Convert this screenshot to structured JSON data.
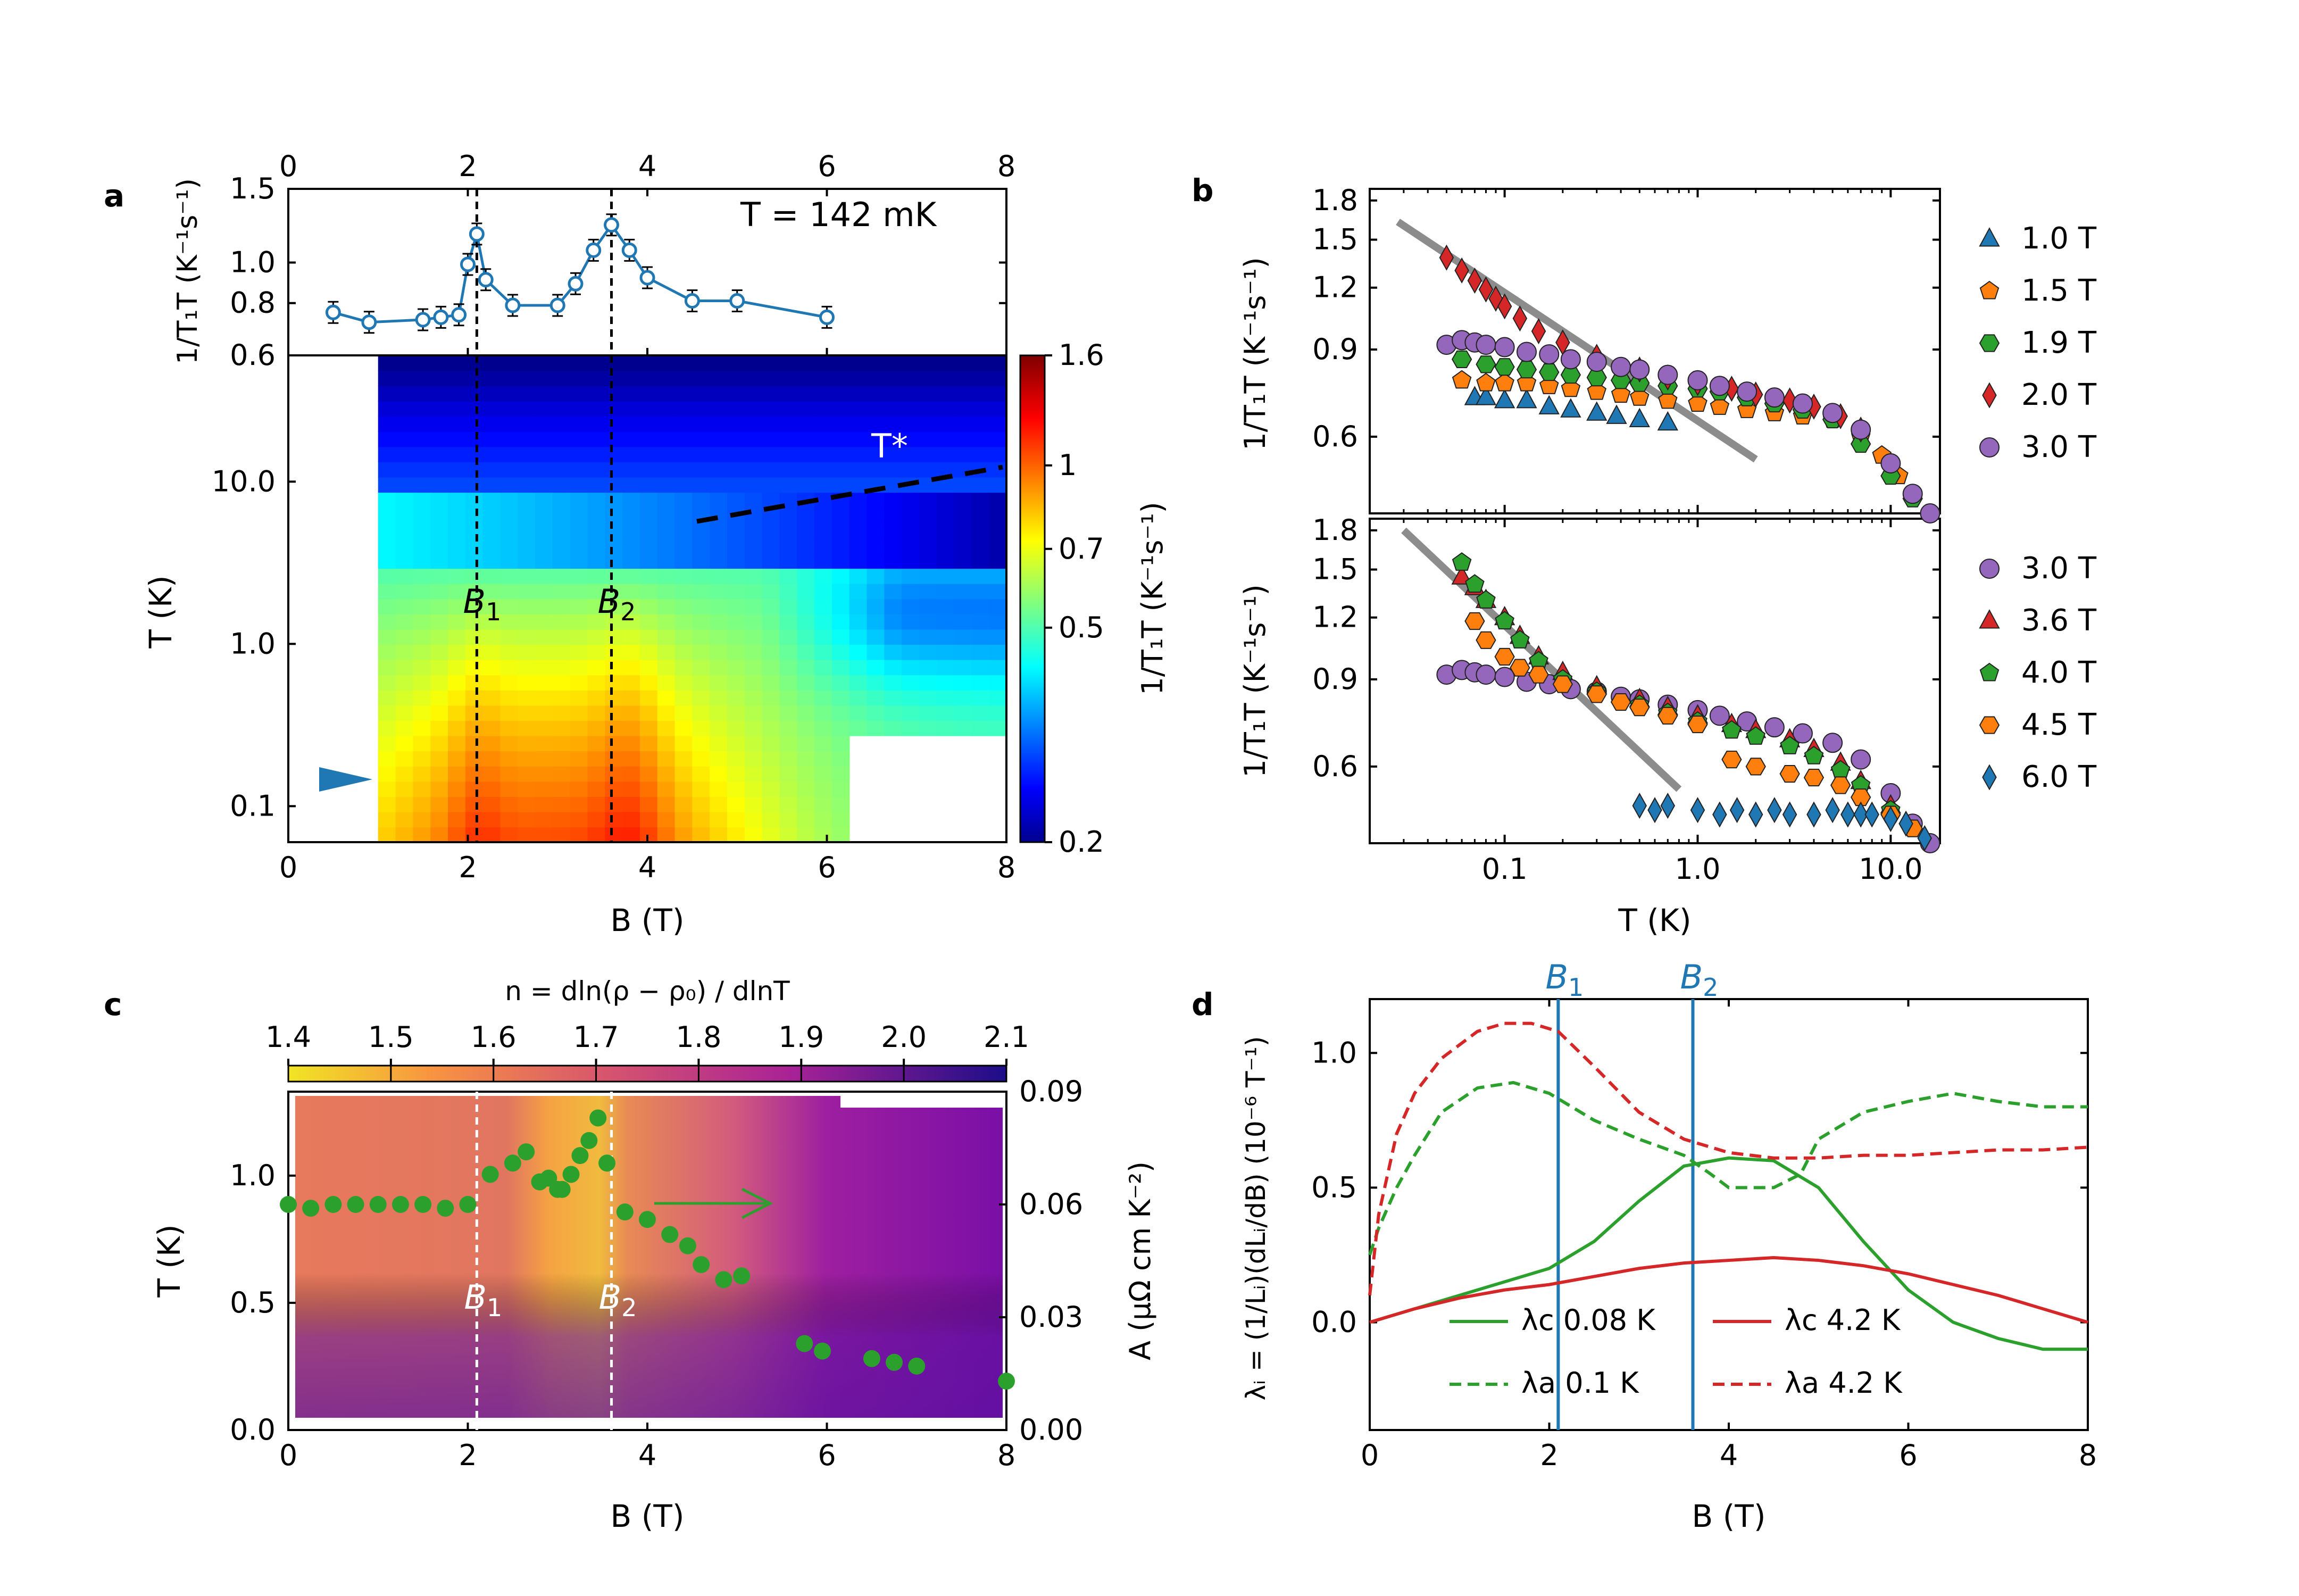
{
  "colors": {
    "blue": "#1f77b4",
    "orange": "#ff7f0e",
    "green": "#2ca02c",
    "red": "#d62728",
    "purple": "#9467bd",
    "panel_d_blue": "#1f77b4",
    "ref_line": "#808080"
  },
  "panel_labels": {
    "a": "a",
    "b": "b",
    "c": "c",
    "d": "d"
  },
  "chart_data": [
    {
      "id": "a-top",
      "type": "line",
      "ylabel": "1/T₁T (K⁻¹s⁻¹)",
      "annotation": "T = 142 mK",
      "xlim": [
        0,
        8
      ],
      "ylim_log": [
        0.6,
        1.5
      ],
      "x_ticks": [
        "0",
        "2",
        "4",
        "6",
        "8"
      ],
      "y_ticks": [
        "0.6",
        "0.8",
        "1.0",
        "1.5"
      ],
      "y_tick_values": [
        0.6,
        0.8,
        1.0,
        1.5
      ],
      "vlines": [
        2.1,
        3.6
      ],
      "series": [
        {
          "x": [
            0.5,
            0.9,
            1.5,
            1.7,
            1.9,
            2.0,
            2.1,
            2.2,
            2.5,
            3.0,
            3.2,
            3.4,
            3.6,
            3.8,
            4.0,
            4.5,
            5.0,
            6.0
          ],
          "y": [
            0.76,
            0.72,
            0.73,
            0.74,
            0.75,
            0.99,
            1.17,
            0.91,
            0.79,
            0.79,
            0.89,
            1.07,
            1.23,
            1.07,
            0.92,
            0.81,
            0.81,
            0.74
          ]
        }
      ]
    },
    {
      "id": "a-map",
      "type": "heatmap",
      "xlabel": "B (T)",
      "ylabel": "T (K)",
      "xlim": [
        0,
        8
      ],
      "ylim_log": [
        0.06,
        60
      ],
      "x_ticks": [
        "0",
        "2",
        "4",
        "6",
        "8"
      ],
      "y_ticks": [
        "0.1",
        "1.0",
        "10.0"
      ],
      "y_tick_values": [
        0.1,
        1.0,
        10.0
      ],
      "vlines": [
        2.1,
        3.6
      ],
      "vline_labels": [
        "B₁",
        "B₂"
      ],
      "annotation": "T*",
      "colorbar": {
        "label": "1/T₁T (K⁻¹s⁻¹)",
        "ticks": [
          "0.2",
          "0.5",
          "0.7",
          "1",
          "1.6"
        ],
        "tick_values": [
          0.2,
          0.5,
          0.7,
          1.0,
          1.6
        ],
        "range": [
          0.2,
          1.6
        ]
      }
    },
    {
      "id": "b-top",
      "type": "scatter",
      "ylabel": "1/T₁T (K⁻¹s⁻¹)",
      "xlim_log": [
        0.02,
        18
      ],
      "ylim_log": [
        0.42,
        1.9
      ],
      "y_ticks": [
        "0.6",
        "0.9",
        "1.2",
        "1.5",
        "1.8"
      ],
      "y_tick_values": [
        0.6,
        0.9,
        1.2,
        1.5,
        1.8
      ],
      "series": [
        {
          "name": "1.0 T",
          "marker": "triangle",
          "x": [
            0.07,
            0.08,
            0.1,
            0.13,
            0.17,
            0.22,
            0.3,
            0.38,
            0.5,
            0.7
          ],
          "y": [
            0.72,
            0.72,
            0.71,
            0.71,
            0.69,
            0.68,
            0.67,
            0.66,
            0.65,
            0.64
          ]
        },
        {
          "name": "1.5 T",
          "marker": "pentagon",
          "x": [
            0.06,
            0.08,
            0.1,
            0.13,
            0.17,
            0.22,
            0.3,
            0.4,
            0.5,
            0.7,
            1.0,
            1.3,
            1.8,
            2.5,
            3.5,
            5.0,
            7.0,
            9.0,
            11.0
          ],
          "y": [
            0.78,
            0.77,
            0.77,
            0.77,
            0.76,
            0.75,
            0.74,
            0.73,
            0.72,
            0.71,
            0.7,
            0.69,
            0.68,
            0.67,
            0.66,
            0.65,
            0.6,
            0.55,
            0.5
          ]
        },
        {
          "name": "1.9 T",
          "marker": "hexagon",
          "x": [
            0.06,
            0.08,
            0.1,
            0.13,
            0.17,
            0.22,
            0.3,
            0.4,
            0.5,
            0.7,
            1.0,
            1.3,
            1.8,
            2.5,
            3.5,
            5.0,
            7.0,
            10.0,
            13.0
          ],
          "y": [
            0.86,
            0.84,
            0.83,
            0.82,
            0.81,
            0.8,
            0.79,
            0.78,
            0.77,
            0.76,
            0.75,
            0.74,
            0.72,
            0.7,
            0.68,
            0.65,
            0.58,
            0.5,
            0.45
          ]
        },
        {
          "name": "2.0 T",
          "marker": "diamond",
          "x": [
            0.05,
            0.06,
            0.07,
            0.08,
            0.09,
            0.1,
            0.12,
            0.15,
            0.2,
            0.3,
            0.5,
            0.7,
            1.0,
            1.5,
            2.0,
            3.0,
            4.0,
            5.5,
            7.0
          ],
          "y": [
            1.38,
            1.3,
            1.24,
            1.19,
            1.14,
            1.1,
            1.04,
            0.98,
            0.93,
            0.87,
            0.82,
            0.79,
            0.77,
            0.75,
            0.73,
            0.71,
            0.69,
            0.66,
            0.62
          ]
        },
        {
          "name": "3.0 T",
          "marker": "circle",
          "x": [
            0.05,
            0.06,
            0.07,
            0.08,
            0.1,
            0.13,
            0.17,
            0.22,
            0.3,
            0.4,
            0.5,
            0.7,
            1.0,
            1.3,
            1.8,
            2.5,
            3.5,
            5.0,
            7.0,
            10.0,
            13.0,
            16.0
          ],
          "y": [
            0.92,
            0.94,
            0.93,
            0.92,
            0.91,
            0.89,
            0.88,
            0.86,
            0.85,
            0.83,
            0.82,
            0.8,
            0.78,
            0.76,
            0.74,
            0.72,
            0.7,
            0.67,
            0.62,
            0.53,
            0.46,
            0.42
          ]
        }
      ],
      "ref_line": {
        "x": [
          0.028,
          2.0
        ],
        "y": [
          1.63,
          0.54
        ]
      }
    },
    {
      "id": "b-bottom",
      "type": "scatter",
      "xlabel": "T (K)",
      "ylabel": "1/T₁T (K⁻¹s⁻¹)",
      "xlim_log": [
        0.02,
        18
      ],
      "ylim_log": [
        0.42,
        1.9
      ],
      "x_ticks": [
        "0.1",
        "1.0",
        "10.0"
      ],
      "x_tick_values": [
        0.1,
        1.0,
        10.0
      ],
      "y_ticks": [
        "0.6",
        "0.9",
        "1.2",
        "1.5",
        "1.8"
      ],
      "y_tick_values": [
        0.6,
        0.9,
        1.2,
        1.5,
        1.8
      ],
      "series": [
        {
          "name": "3.0 T",
          "marker": "circle",
          "x": [
            0.05,
            0.06,
            0.07,
            0.08,
            0.1,
            0.13,
            0.17,
            0.22,
            0.3,
            0.4,
            0.5,
            0.7,
            1.0,
            1.3,
            1.8,
            2.5,
            3.5,
            5.0,
            7.0,
            10.0,
            13.0,
            16.0
          ],
          "y": [
            0.92,
            0.94,
            0.93,
            0.92,
            0.91,
            0.89,
            0.88,
            0.86,
            0.85,
            0.83,
            0.82,
            0.8,
            0.78,
            0.76,
            0.74,
            0.72,
            0.7,
            0.67,
            0.62,
            0.53,
            0.46,
            0.42
          ]
        },
        {
          "name": "3.6 T",
          "marker": "triangle",
          "x": [
            0.06,
            0.07,
            0.08,
            0.1,
            0.12,
            0.15,
            0.2,
            0.3,
            0.5,
            0.7,
            1.0,
            1.5,
            2.0,
            3.0,
            4.0,
            5.5,
            7.0,
            10.0
          ],
          "y": [
            1.45,
            1.38,
            1.3,
            1.2,
            1.1,
            1.0,
            0.93,
            0.87,
            0.82,
            0.79,
            0.76,
            0.73,
            0.71,
            0.68,
            0.65,
            0.61,
            0.56,
            0.5
          ]
        },
        {
          "name": "4.0 T",
          "marker": "pentagon",
          "x": [
            0.06,
            0.07,
            0.08,
            0.1,
            0.12,
            0.15,
            0.2,
            0.3,
            0.5,
            0.7,
            1.0,
            1.5,
            2.0,
            3.0,
            4.0,
            5.5,
            7.0,
            10.0
          ],
          "y": [
            1.55,
            1.4,
            1.3,
            1.18,
            1.08,
            0.98,
            0.9,
            0.85,
            0.8,
            0.77,
            0.74,
            0.71,
            0.69,
            0.66,
            0.63,
            0.59,
            0.55,
            0.49
          ]
        },
        {
          "name": "4.5 T",
          "marker": "hexagon",
          "x": [
            0.07,
            0.08,
            0.1,
            0.12,
            0.15,
            0.2,
            0.3,
            0.4,
            0.5,
            0.7,
            1.0,
            1.5,
            2.0,
            3.0,
            4.0,
            5.5,
            7.0,
            10.0,
            13.0
          ],
          "y": [
            1.18,
            1.08,
            1.0,
            0.95,
            0.92,
            0.88,
            0.84,
            0.81,
            0.79,
            0.76,
            0.73,
            0.62,
            0.6,
            0.58,
            0.57,
            0.55,
            0.52,
            0.48,
            0.45
          ]
        },
        {
          "name": "6.0 T",
          "marker": "diamond",
          "x": [
            0.5,
            0.6,
            0.7,
            1.0,
            1.3,
            1.6,
            2.0,
            2.5,
            3.0,
            4.0,
            5.0,
            6.0,
            7.0,
            8.0,
            10.0,
            12.0,
            15.0
          ],
          "y": [
            0.5,
            0.49,
            0.5,
            0.49,
            0.48,
            0.49,
            0.48,
            0.49,
            0.48,
            0.48,
            0.49,
            0.48,
            0.48,
            0.48,
            0.47,
            0.46,
            0.43
          ]
        }
      ],
      "ref_line": {
        "x": [
          0.03,
          0.8
        ],
        "y": [
          1.8,
          0.54
        ]
      }
    },
    {
      "id": "c",
      "type": "heatmap",
      "xlabel": "B (T)",
      "ylabel": "T (K)",
      "y2label": "A (μΩ cm K⁻²)",
      "xlim": [
        0,
        8
      ],
      "ylim": [
        0,
        1.33
      ],
      "y2lim": [
        0,
        0.09
      ],
      "x_ticks": [
        "0",
        "2",
        "4",
        "6",
        "8"
      ],
      "y_ticks": [
        "0.0",
        "0.5",
        "1.0"
      ],
      "y_tick_values": [
        0.0,
        0.5,
        1.0
      ],
      "y2_ticks": [
        "0.00",
        "0.03",
        "0.06",
        "0.09"
      ],
      "y2_tick_values": [
        0.0,
        0.03,
        0.06,
        0.09
      ],
      "vlines": [
        2.1,
        3.6
      ],
      "vline_labels": [
        "B₁",
        "B₂"
      ],
      "colorbar": {
        "label": "n = dln(ρ − ρ₀) / dlnT",
        "ticks": [
          "1.4",
          "1.5",
          "1.6",
          "1.7",
          "1.8",
          "1.9",
          "2.0",
          "2.1"
        ],
        "tick_values": [
          1.4,
          1.5,
          1.6,
          1.7,
          1.8,
          1.9,
          2.0,
          2.1
        ]
      },
      "series": [
        {
          "name": "A",
          "x": [
            0.0,
            0.25,
            0.5,
            0.75,
            1.0,
            1.25,
            1.5,
            1.75,
            2.0,
            2.25,
            2.5,
            2.65,
            2.8,
            2.9,
            3.0,
            3.05,
            3.15,
            3.25,
            3.35,
            3.45,
            3.55,
            3.75,
            4.0,
            4.25,
            4.45,
            4.6,
            4.85,
            5.05,
            5.75,
            5.95,
            6.5,
            6.75,
            7.0,
            8.0
          ],
          "y": [
            0.06,
            0.059,
            0.06,
            0.06,
            0.06,
            0.06,
            0.06,
            0.059,
            0.06,
            0.068,
            0.071,
            0.074,
            0.066,
            0.067,
            0.064,
            0.064,
            0.068,
            0.073,
            0.077,
            0.083,
            0.071,
            0.058,
            0.056,
            0.052,
            0.049,
            0.044,
            0.04,
            0.041,
            0.023,
            0.021,
            0.019,
            0.018,
            0.017,
            0.013
          ]
        }
      ]
    },
    {
      "id": "d",
      "type": "line",
      "xlabel": "B (T)",
      "ylabel": "λᵢ = (1/Lᵢ)(dLᵢ/dB) (10⁻⁶ T⁻¹)",
      "xlim": [
        0,
        8
      ],
      "ylim": [
        -0.4,
        1.2
      ],
      "x_ticks": [
        "0",
        "2",
        "4",
        "6",
        "8"
      ],
      "y_ticks": [
        "0.0",
        "0.5",
        "1.0"
      ],
      "y_tick_values": [
        0.0,
        0.5,
        1.0
      ],
      "vlines": [
        2.1,
        3.6
      ],
      "vline_labels": [
        "B₁",
        "B₂"
      ],
      "series": [
        {
          "name": "λc 0.08 K",
          "style": "solid-green",
          "x": [
            0.0,
            0.5,
            1.0,
            1.5,
            2.0,
            2.5,
            3.0,
            3.5,
            4.0,
            4.5,
            5.0,
            5.5,
            6.0,
            6.5,
            7.0,
            7.5,
            8.0
          ],
          "y": [
            0.0,
            0.05,
            0.1,
            0.15,
            0.2,
            0.3,
            0.45,
            0.58,
            0.61,
            0.6,
            0.5,
            0.3,
            0.12,
            0.0,
            -0.06,
            -0.1,
            -0.1
          ]
        },
        {
          "name": "λa 0.1 K",
          "style": "dashed-green",
          "x": [
            0.0,
            0.1,
            0.3,
            0.5,
            0.8,
            1.2,
            1.6,
            2.0,
            2.5,
            3.0,
            3.5,
            3.8,
            4.0,
            4.5,
            4.8,
            5.0,
            5.5,
            6.0,
            6.5,
            7.0,
            7.5,
            8.0
          ],
          "y": [
            0.25,
            0.35,
            0.5,
            0.62,
            0.78,
            0.87,
            0.89,
            0.85,
            0.75,
            0.68,
            0.62,
            0.55,
            0.5,
            0.5,
            0.55,
            0.68,
            0.78,
            0.82,
            0.85,
            0.82,
            0.8,
            0.8
          ]
        },
        {
          "name": "λc 4.2 K",
          "style": "solid-red",
          "x": [
            0.0,
            0.5,
            1.0,
            1.5,
            2.0,
            2.5,
            3.0,
            3.5,
            4.0,
            4.5,
            5.0,
            5.5,
            6.0,
            6.5,
            7.0,
            7.5,
            8.0
          ],
          "y": [
            0.0,
            0.05,
            0.09,
            0.12,
            0.14,
            0.17,
            0.2,
            0.22,
            0.23,
            0.24,
            0.23,
            0.21,
            0.18,
            0.14,
            0.1,
            0.05,
            0.0
          ]
        },
        {
          "name": "λa 4.2 K",
          "style": "dashed-red",
          "x": [
            0.0,
            0.1,
            0.3,
            0.5,
            0.8,
            1.2,
            1.5,
            1.8,
            2.1,
            2.5,
            3.0,
            3.5,
            4.0,
            4.5,
            5.0,
            5.5,
            6.0,
            6.5,
            7.0,
            7.5,
            8.0
          ],
          "y": [
            0.1,
            0.4,
            0.7,
            0.85,
            0.98,
            1.08,
            1.11,
            1.11,
            1.08,
            0.95,
            0.78,
            0.68,
            0.63,
            0.61,
            0.61,
            0.62,
            0.62,
            0.63,
            0.64,
            0.64,
            0.65
          ]
        }
      ]
    }
  ]
}
